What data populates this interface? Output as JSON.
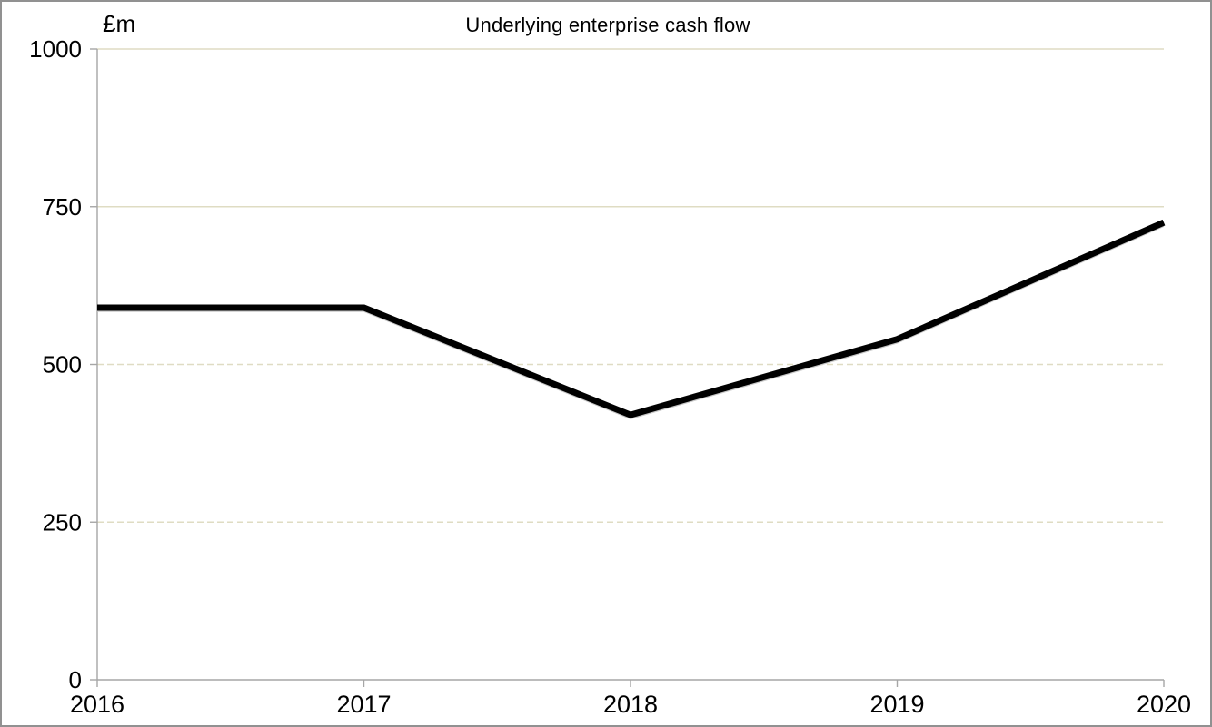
{
  "window": {
    "background": "#ffffff",
    "border_color": "#919191"
  },
  "chart_data": {
    "type": "line",
    "title": "Underlying enterprise cash flow",
    "unit_label": "£m",
    "categories": [
      "2016",
      "2017",
      "2018",
      "2019",
      "2020"
    ],
    "series": [
      {
        "name": "Underlying enterprise cash flow",
        "values": [
          590,
          590,
          420,
          540,
          725
        ]
      }
    ],
    "xlabel": "",
    "ylabel": "£m",
    "ylim": [
      0,
      1000
    ],
    "yticks": [
      0,
      250,
      500,
      750,
      1000
    ],
    "gridlines": [
      {
        "value": 250,
        "style": "dashed"
      },
      {
        "value": 500,
        "style": "dashed"
      },
      {
        "value": 750,
        "style": "solid"
      },
      {
        "value": 1000,
        "style": "solid"
      }
    ],
    "legend_position": "none",
    "colors": {
      "line": "#000000",
      "line_shadow": "#c8c8c8",
      "gridline": "#dfdcc3",
      "axis": "#a6a6a6",
      "text": "#000000"
    }
  }
}
